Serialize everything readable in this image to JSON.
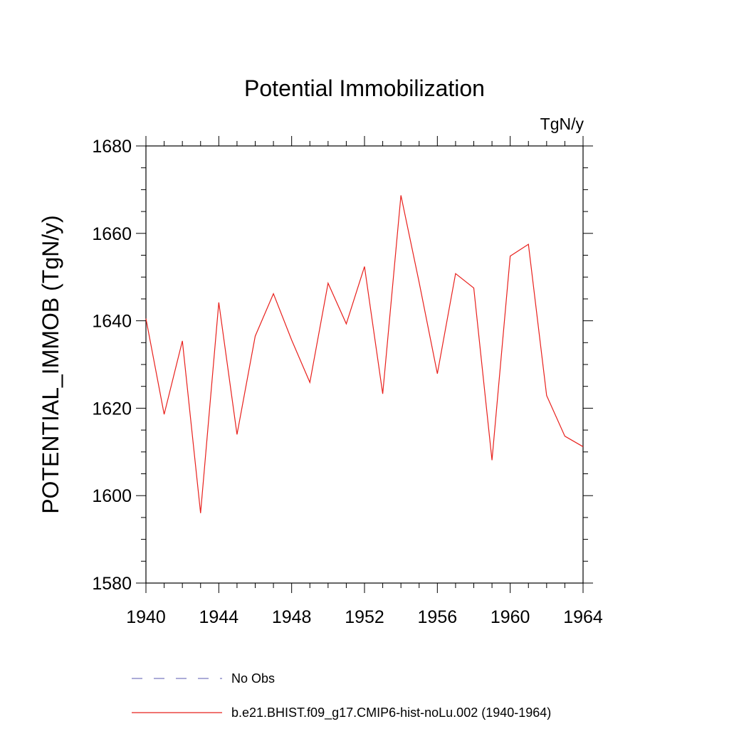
{
  "chart_data": {
    "type": "line",
    "title": "Potential Immobilization",
    "units_label": "TgN/y",
    "ylabel": "POTENTIAL_IMMOB  (TgN/y)",
    "xlabel": "",
    "xlim": [
      1940,
      1964
    ],
    "ylim": [
      1580,
      1680
    ],
    "x_ticks": [
      1940,
      1944,
      1948,
      1952,
      1956,
      1960,
      1964
    ],
    "y_ticks": [
      1580,
      1600,
      1620,
      1640,
      1660,
      1680
    ],
    "x_minor_step": 1,
    "y_minor_step": 5,
    "grid": false,
    "legend_position": "bottom",
    "series": [
      {
        "name": "No Obs",
        "color": "#7b7bc0",
        "dash": "dashed",
        "x": [],
        "y": []
      },
      {
        "name": "b.e21.BHIST.f09_g17.CMIP6-hist-noLu.002 (1940-1964)",
        "color": "#e8201c",
        "dash": "solid",
        "x": [
          1940,
          1941,
          1942,
          1943,
          1944,
          1945,
          1946,
          1947,
          1948,
          1949,
          1950,
          1951,
          1952,
          1953,
          1954,
          1955,
          1956,
          1957,
          1958,
          1959,
          1960,
          1961,
          1962,
          1963,
          1964
        ],
        "y": [
          1640.5,
          1618.6,
          1635.4,
          1596.0,
          1644.2,
          1614.0,
          1636.5,
          1646.2,
          1635.6,
          1625.9,
          1648.6,
          1639.3,
          1652.4,
          1623.3,
          1668.7,
          1648.8,
          1627.9,
          1650.8,
          1647.5,
          1608.1,
          1654.8,
          1657.5,
          1622.9,
          1613.6,
          1611.2
        ]
      }
    ]
  }
}
